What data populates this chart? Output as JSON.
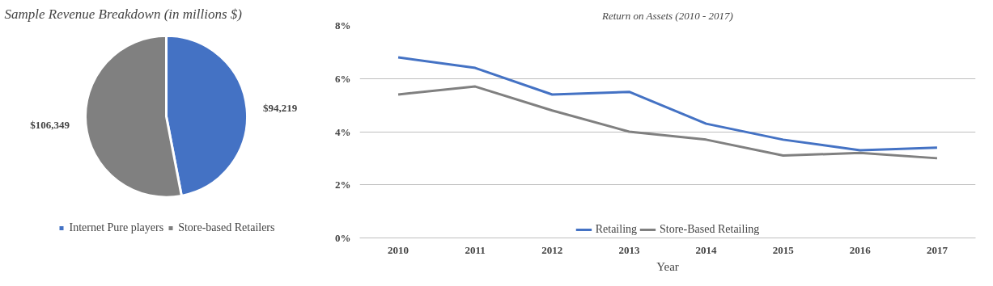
{
  "chart_data": [
    {
      "type": "pie",
      "title": "Sample Revenue Breakdown (in millions $)",
      "categories": [
        "Internet Pure players",
        "Store-based Retailers"
      ],
      "values": [
        94219,
        106349
      ],
      "colors": [
        "#4472c4",
        "#808080"
      ],
      "value_labels": [
        "$94,219",
        "$106,349"
      ],
      "legend": "bottom"
    },
    {
      "type": "line",
      "title": "Return on Assets (2010 - 2017)",
      "xlabel": "Year",
      "categories": [
        "2010",
        "2011",
        "2012",
        "2013",
        "2014",
        "2015",
        "2016",
        "2017"
      ],
      "series": [
        {
          "name": "Retailing",
          "color": "#4472c4",
          "values": [
            6.8,
            6.4,
            5.4,
            5.5,
            4.3,
            3.7,
            3.3,
            3.4
          ]
        },
        {
          "name": "Store-Based Retailing",
          "color": "#808080",
          "values": [
            5.4,
            5.7,
            4.8,
            4.0,
            3.7,
            3.1,
            3.2,
            3.0
          ]
        }
      ],
      "ylim": [
        0,
        8
      ],
      "yticks": [
        {
          "value": 0,
          "label": "0%"
        },
        {
          "value": 2,
          "label": "2%"
        },
        {
          "value": 4,
          "label": "4%"
        },
        {
          "value": 6,
          "label": "6%"
        },
        {
          "value": 8,
          "label": "8%"
        }
      ],
      "grid": "y",
      "legend": "bottom",
      "marker": "none",
      "line_style": "solid"
    }
  ]
}
